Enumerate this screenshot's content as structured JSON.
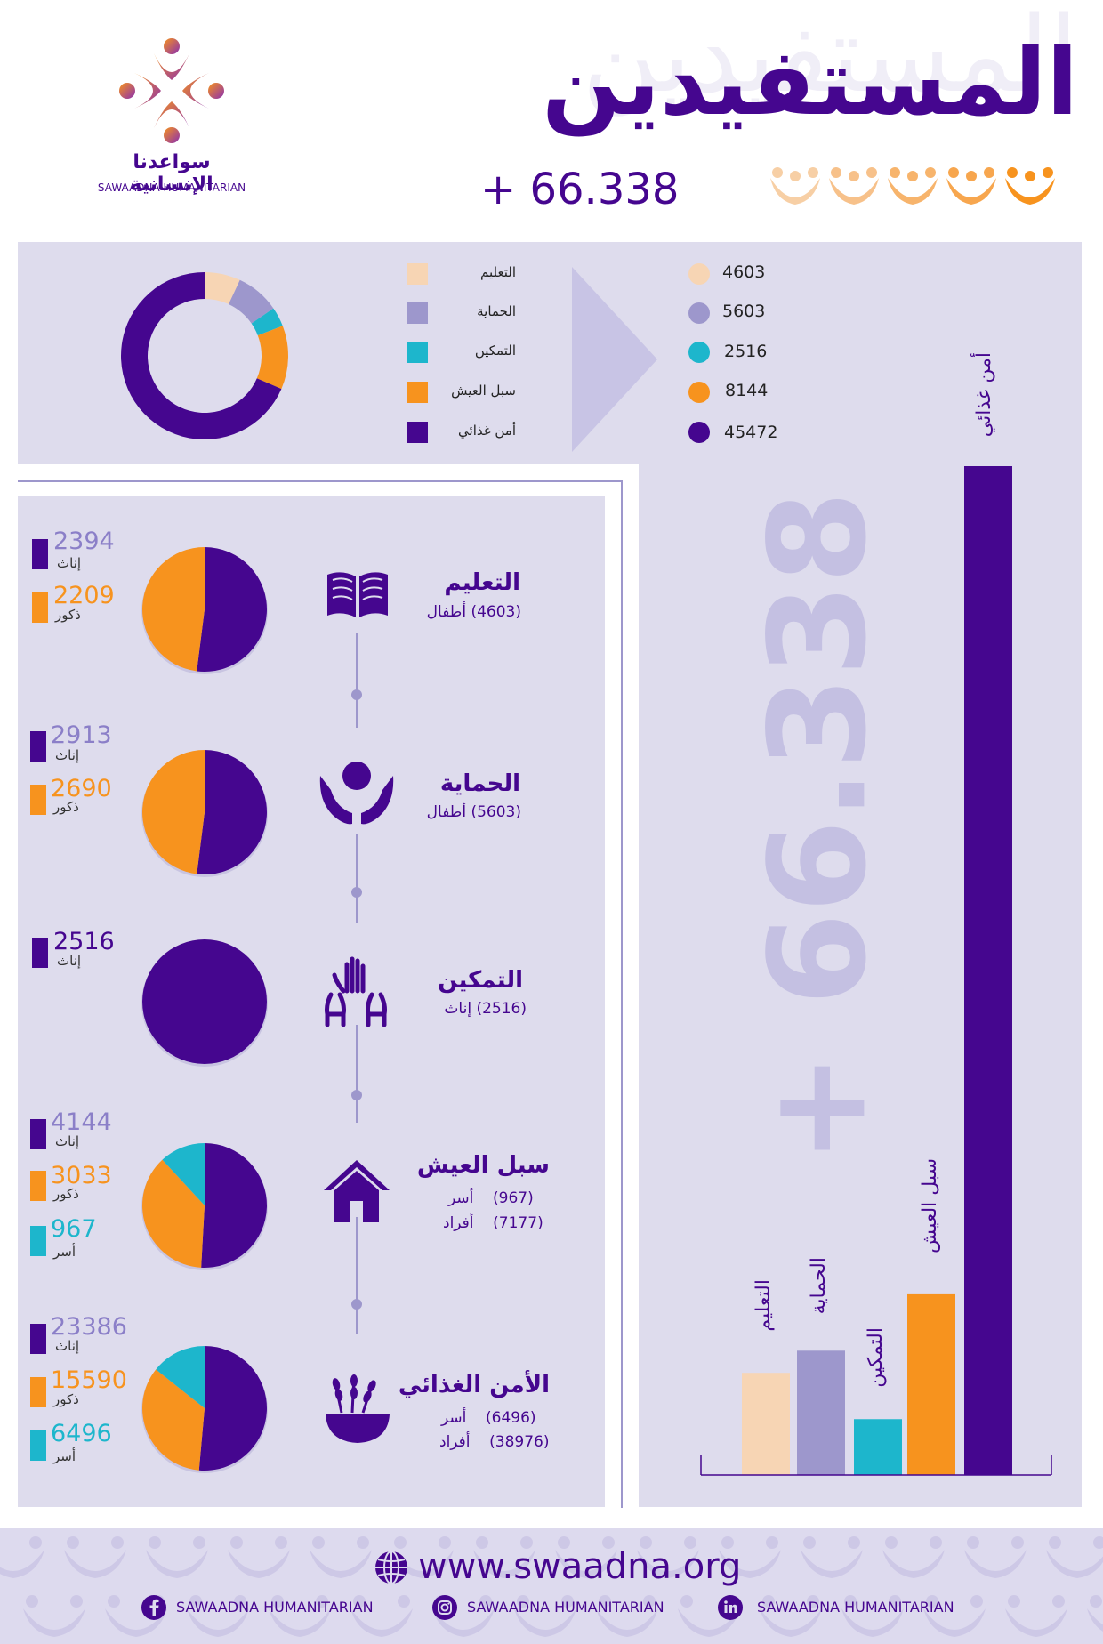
{
  "header": {
    "title": "المستفيدين",
    "total": "+ 66.338",
    "org_name_ar": "سواعدنا الإنسانية",
    "org_name_en": "SAWAADNA HUMANITARIAN"
  },
  "colors": {
    "purple": "#45068f",
    "orange": "#f7931e",
    "teal": "#1db6cc",
    "lavender": "#9d97cc",
    "peach": "#f7d5b4",
    "panel": "#dedced"
  },
  "legend": {
    "items": [
      {
        "label": "التعليم",
        "value": "4603",
        "color": "#f7d5b4"
      },
      {
        "label": "الحماية",
        "value": "5603",
        "color": "#9d97cc"
      },
      {
        "label": "التمكين",
        "value": "2516",
        "color": "#1db6cc"
      },
      {
        "label": "سبل العيش",
        "value": "8144",
        "color": "#f7931e"
      },
      {
        "label": "أمن غذائي",
        "value": "45472",
        "color": "#45068f"
      }
    ]
  },
  "categories": [
    {
      "title": "التعليم",
      "sub_value": "(4603)",
      "sub_label": "أطفال",
      "icon": "book-icon",
      "stats": [
        {
          "num": "2394",
          "label": "إناث",
          "color": "#45068f",
          "text_color": "#8b7fc8"
        },
        {
          "num": "2209",
          "label": "ذكور",
          "color": "#f7931e",
          "text_color": "#f7931e"
        }
      ]
    },
    {
      "title": "الحماية",
      "sub_value": "(5603)",
      "sub_label": "أطفال",
      "icon": "protection-hands-icon",
      "stats": [
        {
          "num": "2913",
          "label": "إناث",
          "color": "#45068f",
          "text_color": "#8b7fc8"
        },
        {
          "num": "2690",
          "label": "ذكور",
          "color": "#f7931e",
          "text_color": "#f7931e"
        }
      ]
    },
    {
      "title": "التمكين",
      "sub_value": "(2516)",
      "sub_label": "إناث",
      "icon": "raised-hands-icon",
      "stats": [
        {
          "num": "2516",
          "label": "إناث",
          "color": "#45068f",
          "text_color": "#45068f"
        }
      ]
    },
    {
      "title": "سبل العيش",
      "sub_value": "(967)",
      "sub_label": "أسر",
      "sub_value2": "(7177)",
      "sub_label2": "أفراد",
      "icon": "house-icon",
      "stats": [
        {
          "num": "4144",
          "label": "إناث",
          "color": "#45068f",
          "text_color": "#8b7fc8"
        },
        {
          "num": "3033",
          "label": "ذكور",
          "color": "#f7931e",
          "text_color": "#f7931e"
        },
        {
          "num": "967",
          "label": "أسر",
          "color": "#1db6cc",
          "text_color": "#1db6cc"
        }
      ]
    },
    {
      "title": "الأمن الغذائي",
      "sub_value": "(6496)",
      "sub_label": "أسر",
      "sub_value2": "(38976)",
      "sub_label2": "أفراد",
      "icon": "grain-bowl-icon",
      "stats": [
        {
          "num": "23386",
          "label": "إناث",
          "color": "#45068f",
          "text_color": "#8b7fc8"
        },
        {
          "num": "15590",
          "label": "ذكور",
          "color": "#f7931e",
          "text_color": "#f7931e"
        },
        {
          "num": "6496",
          "label": "أسر",
          "color": "#1db6cc",
          "text_color": "#1db6cc"
        }
      ]
    }
  ],
  "chart_data": [
    {
      "type": "pie",
      "labels": [
        "التعليم",
        "الحماية",
        "التمكين",
        "سبل العيش",
        "أمن غذائي"
      ],
      "values": [
        4603,
        5603,
        2516,
        8144,
        45472
      ],
      "colors": [
        "#f7d5b4",
        "#9d97cc",
        "#1db6cc",
        "#f7931e",
        "#45068f"
      ]
    },
    {
      "type": "bar",
      "categories": [
        "التعليم",
        "الحماية",
        "التمكين",
        "سبل العيش",
        "أمن غذائي"
      ],
      "values": [
        4603,
        5603,
        2516,
        8144,
        45472
      ],
      "colors": [
        "#f7d5b4",
        "#9d97cc",
        "#1db6cc",
        "#f7931e",
        "#45068f"
      ]
    },
    {
      "type": "pie",
      "values": [
        2394,
        2209
      ],
      "colors": [
        "#45068f",
        "#f7931e"
      ]
    },
    {
      "type": "pie",
      "values": [
        2913,
        2690
      ],
      "colors": [
        "#45068f",
        "#f7931e"
      ]
    },
    {
      "type": "pie",
      "values": [
        2516
      ],
      "colors": [
        "#45068f"
      ]
    },
    {
      "type": "pie",
      "values": [
        4144,
        3033,
        967
      ],
      "colors": [
        "#45068f",
        "#f7931e",
        "#1db6cc"
      ]
    },
    {
      "type": "pie",
      "values": [
        23386,
        15590,
        6496
      ],
      "colors": [
        "#45068f",
        "#f7931e",
        "#1db6cc"
      ]
    }
  ],
  "footer": {
    "website": "www.swaadna.org",
    "facebook": "SAWAADNA HUMANITARIAN",
    "instagram": "SAWAADNA HUMANITARIAN",
    "linkedin": "SAWAADNA HUMANITARIAN"
  }
}
